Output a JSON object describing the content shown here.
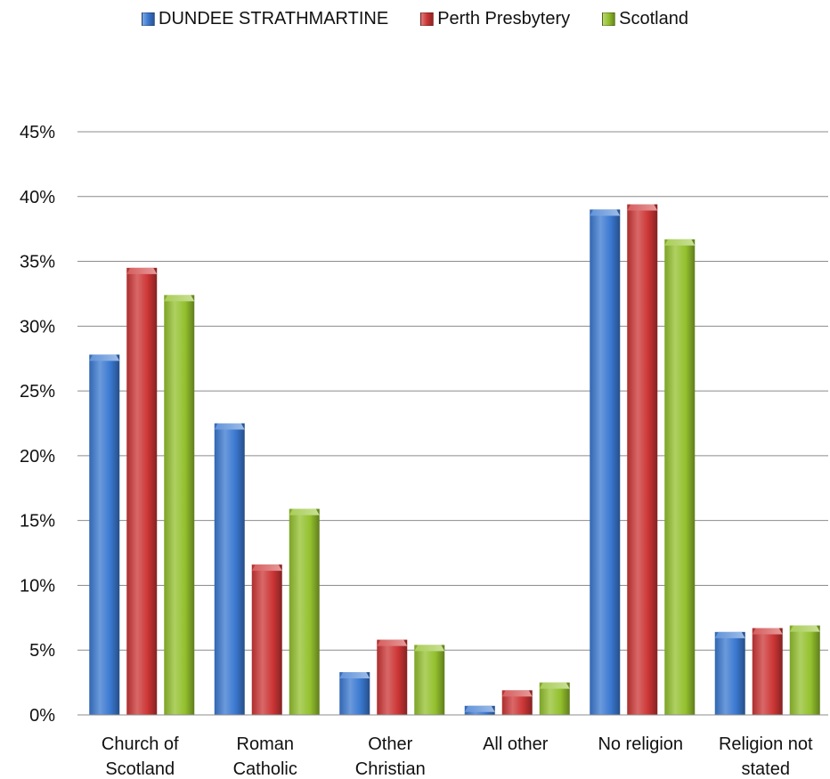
{
  "chart_data": {
    "type": "bar",
    "categories": [
      [
        "Church of",
        "Scotland"
      ],
      [
        "Roman",
        "Catholic"
      ],
      [
        "Other",
        "Christian"
      ],
      [
        "All other"
      ],
      [
        "No religion"
      ],
      [
        "Religion not",
        "stated"
      ]
    ],
    "series": [
      {
        "name": "DUNDEE STRATHMARTINE",
        "color": "#3a78d0",
        "values": [
          27.8,
          22.5,
          3.3,
          0.7,
          39.0,
          6.4
        ]
      },
      {
        "name": "Perth Presbytery",
        "color": "#cc3535",
        "values": [
          34.5,
          11.6,
          5.8,
          1.9,
          39.4,
          6.7
        ]
      },
      {
        "name": "Scotland",
        "color": "#93c02d",
        "values": [
          32.4,
          15.9,
          5.4,
          2.5,
          36.7,
          6.9
        ]
      }
    ],
    "ylim": [
      0,
      45
    ],
    "yticks": [
      "0%",
      "5%",
      "10%",
      "15%",
      "20%",
      "25%",
      "30%",
      "35%",
      "40%",
      "45%"
    ],
    "grid": true,
    "legend_position": "top"
  }
}
